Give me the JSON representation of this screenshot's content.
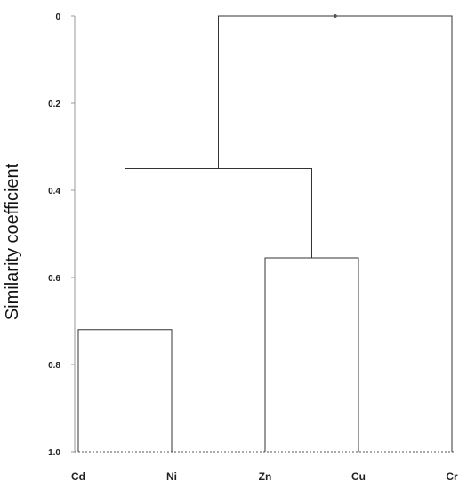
{
  "chart_data": {
    "type": "dendrogram",
    "ylabel": "Similarity coefficient",
    "y_ticks": [
      "0",
      "0.2",
      "0.4",
      "0.6",
      "0.8",
      "1.0"
    ],
    "y_tick_values": [
      0,
      0.2,
      0.4,
      0.6,
      0.8,
      1.0
    ],
    "ylim": [
      0,
      1.0
    ],
    "y_axis_inverted": true,
    "leaves": [
      "Cd",
      "Ni",
      "Zn",
      "Cu",
      "Cr"
    ],
    "merges": [
      {
        "left": "Cd",
        "right": "Ni",
        "height": 0.72
      },
      {
        "left": "Zn",
        "right": "Cu",
        "height": 0.555
      },
      {
        "left": "Cd-Ni",
        "right": "Zn-Cu",
        "height": 0.35
      },
      {
        "left": "Cd-Ni-Zn-Cu",
        "right": "Cr",
        "height": 0.0
      }
    ],
    "baseline_style": "dotted",
    "line_color": "#333333",
    "axis_color": "#999999"
  }
}
